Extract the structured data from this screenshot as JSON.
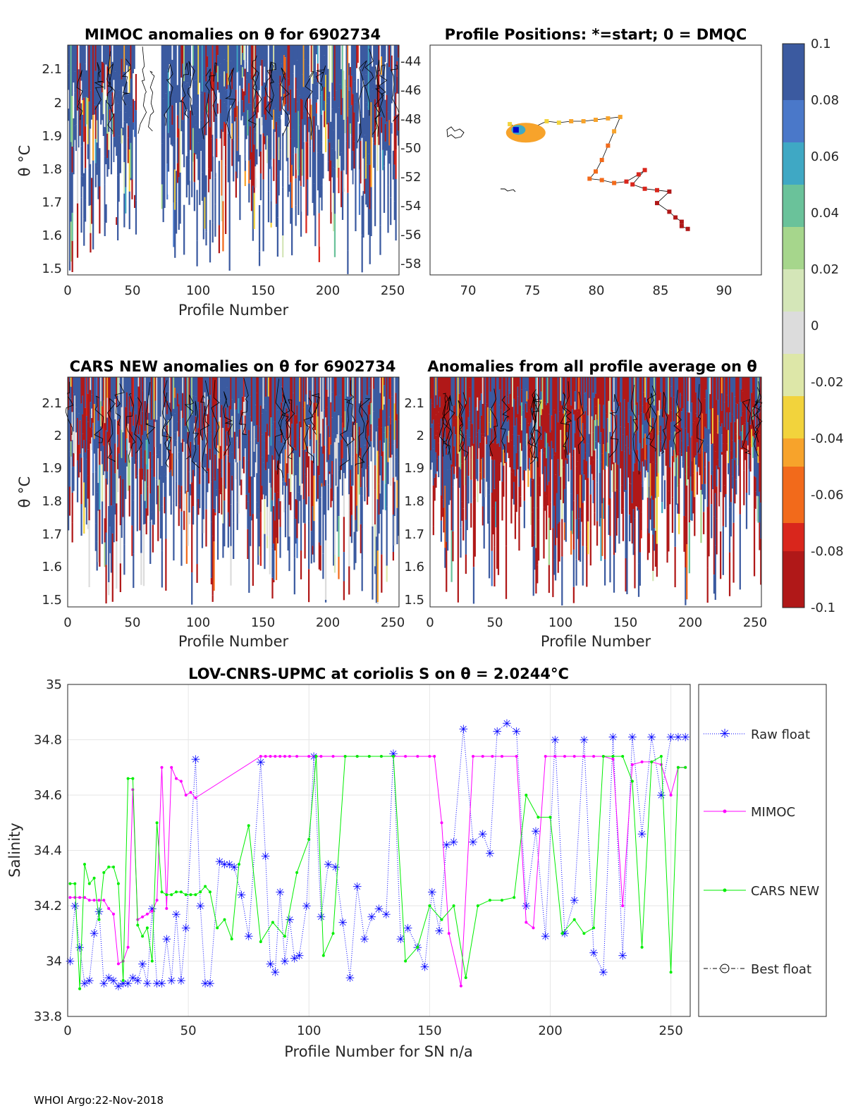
{
  "colors": {
    "colormap": [
      "#3b5aa0",
      "#4a78c9",
      "#3fa8c4",
      "#6ac29a",
      "#a6d68c",
      "#d4e6b8",
      "#dcdcdc",
      "#dde7a8",
      "#f2d33c",
      "#f7a32b",
      "#f26a1b",
      "#d9261c",
      "#b01818"
    ],
    "raw": "#0000ff",
    "mimoc": "#ff00ff",
    "cars": "#00ee00",
    "best": "#000000"
  },
  "panel1": {
    "title": "MIMOC anomalies on θ  for 6902734",
    "ylabel": "θ °C",
    "xlabel": "Profile Number",
    "xticks": [
      "0",
      "50",
      "100",
      "150",
      "200",
      "250"
    ],
    "yticks": [
      "2.1",
      "2",
      "1.9",
      "1.8",
      "1.7",
      "1.6",
      "1.5"
    ]
  },
  "panel2": {
    "title": "Profile Positions: *=start; 0 = DMQC",
    "xticks": [
      "70",
      "75",
      "80",
      "85",
      "90"
    ],
    "yticks": [
      "-44",
      "-46",
      "-48",
      "-50",
      "-52",
      "-54",
      "-56",
      "-58"
    ]
  },
  "panel3": {
    "title": "CARS NEW anomalies on θ for 6902734",
    "ylabel": "θ °C",
    "xlabel": "Profile Number",
    "xticks": [
      "0",
      "50",
      "100",
      "150",
      "200",
      "250"
    ],
    "yticks": [
      "2.1",
      "2",
      "1.9",
      "1.8",
      "1.7",
      "1.6",
      "1.5"
    ]
  },
  "panel4": {
    "title": "Anomalies from all profile average on θ",
    "xlabel": "Profile Number",
    "xticks": [
      "0",
      "50",
      "100",
      "150",
      "200",
      "250"
    ],
    "yticks": [
      "2.1",
      "2",
      "1.9",
      "1.8",
      "1.7",
      "1.6",
      "1.5"
    ]
  },
  "colorbar": {
    "ticks": [
      "0.1",
      "0.08",
      "0.06",
      "0.04",
      "0.02",
      "0",
      "-0.02",
      "-0.04",
      "-0.06",
      "-0.08",
      "-0.1"
    ]
  },
  "legend": {
    "raw": "Raw float",
    "mimoc": "MIMOC",
    "cars": "CARS NEW",
    "best": "Best float"
  },
  "chart_data": [
    {
      "type": "heatmap",
      "title": "MIMOC anomalies on θ  for 6902734",
      "xlabel": "Profile Number",
      "ylabel": "θ °C",
      "xlim": [
        0,
        255
      ],
      "ylim": [
        1.48,
        2.17
      ],
      "clim": [
        -0.1,
        0.1
      ]
    },
    {
      "type": "scatter",
      "title": "Profile Positions: *=start; 0 = DMQC",
      "xlim": [
        66,
        93
      ],
      "ylim": [
        -59,
        -43
      ],
      "track_x": [
        72.5,
        73.0,
        73.5,
        74.0,
        74.5,
        75.5,
        76.5,
        77.5,
        78.5,
        79.5,
        80.5,
        81.5,
        81.0,
        80.5,
        80.0,
        79.5,
        79.0,
        80.0,
        81.0,
        82.0,
        83.0,
        83.5,
        82.5,
        83.5,
        84.5,
        85.5,
        84.5,
        85.5,
        86.0,
        86.5,
        86.5,
        87.0
      ],
      "track_y": [
        -48.5,
        -48.7,
        -48.9,
        -49.0,
        -48.7,
        -48.3,
        -48.4,
        -48.3,
        -48.3,
        -48.2,
        -48.1,
        -48.0,
        -49.0,
        -50.0,
        -51.0,
        -51.8,
        -52.3,
        -52.4,
        -52.6,
        -52.5,
        -52.0,
        -51.7,
        -52.7,
        -53.0,
        -53.1,
        -53.2,
        -54.0,
        -54.6,
        -55.0,
        -55.3,
        -55.6,
        -55.8
      ],
      "colorbar_ticks": [
        0.1,
        0.08,
        0.06,
        0.04,
        0.02,
        0,
        -0.02,
        -0.04,
        -0.06,
        -0.08,
        -0.1
      ]
    },
    {
      "type": "heatmap",
      "title": "CARS NEW anomalies on θ for 6902734",
      "xlabel": "Profile Number",
      "ylabel": "θ °C",
      "xlim": [
        0,
        255
      ],
      "ylim": [
        1.48,
        2.17
      ],
      "clim": [
        -0.1,
        0.1
      ]
    },
    {
      "type": "heatmap",
      "title": "Anomalies from all profile average on θ",
      "xlabel": "Profile Number",
      "xlim": [
        0,
        255
      ],
      "ylim": [
        1.48,
        2.17
      ],
      "clim": [
        -0.1,
        0.1
      ]
    },
    {
      "type": "line",
      "title": "LOV-CNRS-UPMC at coriolis S on θ = 2.0244°C",
      "xlabel": "Profile Number for SN n/a",
      "ylabel": "Salinity",
      "xlim": [
        0,
        258
      ],
      "ylim": [
        33.8,
        35.0
      ],
      "xticks": [
        0,
        50,
        100,
        150,
        200,
        250
      ],
      "yticks": [
        33.8,
        34,
        34.2,
        34.4,
        34.6,
        34.8,
        35
      ],
      "series": [
        {
          "name": "Raw float",
          "x": [
            1,
            3,
            5,
            7,
            9,
            11,
            13,
            15,
            17,
            19,
            21,
            23,
            25,
            27,
            29,
            31,
            33,
            35,
            37,
            39,
            41,
            43,
            45,
            47,
            49,
            53,
            55,
            57,
            59,
            63,
            65,
            67,
            69,
            72,
            75,
            80,
            82,
            84,
            86,
            88,
            90,
            92,
            94,
            96,
            99,
            102,
            105,
            108,
            111,
            114,
            117,
            120,
            123,
            126,
            129,
            132,
            135,
            138,
            141,
            145,
            148,
            151,
            154,
            157,
            160,
            164,
            168,
            172,
            175,
            178,
            182,
            186,
            190,
            194,
            198,
            202,
            206,
            210,
            214,
            218,
            222,
            226,
            230,
            234,
            238,
            242,
            246,
            250,
            253,
            256
          ],
          "y": [
            34.0,
            34.2,
            34.05,
            33.92,
            33.93,
            34.1,
            34.18,
            33.92,
            33.94,
            33.93,
            33.91,
            33.92,
            33.92,
            33.94,
            33.93,
            33.99,
            33.92,
            34.19,
            33.92,
            33.92,
            34.08,
            33.93,
            34.17,
            33.93,
            34.12,
            34.73,
            34.2,
            33.92,
            33.92,
            34.36,
            34.35,
            34.35,
            34.34,
            34.24,
            34.09,
            34.72,
            34.38,
            33.99,
            33.96,
            34.25,
            34.0,
            34.15,
            34.01,
            34.02,
            34.2,
            34.74,
            34.16,
            34.35,
            34.34,
            34.14,
            33.94,
            34.27,
            34.08,
            34.16,
            34.19,
            34.17,
            34.75,
            34.08,
            34.12,
            34.05,
            33.98,
            34.25,
            34.11,
            34.42,
            34.43,
            34.84,
            34.43,
            34.46,
            34.39,
            34.83,
            34.86,
            34.83,
            34.2,
            34.47,
            34.09,
            34.8,
            34.1,
            34.22,
            34.8,
            34.03,
            33.96,
            34.81,
            34.02,
            34.81,
            34.46,
            34.81,
            34.6,
            34.81,
            34.81,
            34.81
          ]
        },
        {
          "name": "MIMOC",
          "x": [
            1,
            3,
            5,
            7,
            9,
            11,
            13,
            15,
            17,
            19,
            21,
            23,
            25,
            27,
            29,
            31,
            33,
            35,
            37,
            39,
            41,
            43,
            45,
            47,
            49,
            51,
            53,
            80,
            82,
            84,
            86,
            88,
            90,
            92,
            95,
            100,
            105,
            110,
            115,
            120,
            125,
            130,
            135,
            140,
            145,
            150,
            152,
            155,
            158,
            163,
            168,
            172,
            176,
            180,
            186,
            190,
            193,
            198,
            202,
            206,
            210,
            214,
            218,
            222,
            226,
            230,
            234,
            238,
            242,
            246,
            250,
            253,
            256
          ],
          "y": [
            34.23,
            34.23,
            34.23,
            34.23,
            34.22,
            34.22,
            34.22,
            34.22,
            34.19,
            34.17,
            33.99,
            34.0,
            34.05,
            34.62,
            34.15,
            34.16,
            34.17,
            34.18,
            34.22,
            34.7,
            34.19,
            34.7,
            34.66,
            34.65,
            34.6,
            34.61,
            34.59,
            34.74,
            34.74,
            34.74,
            34.74,
            34.74,
            34.74,
            34.74,
            34.74,
            34.74,
            34.74,
            34.74,
            34.74,
            34.74,
            34.74,
            34.74,
            34.74,
            34.74,
            34.74,
            34.74,
            34.74,
            34.5,
            34.1,
            33.91,
            34.74,
            34.74,
            34.74,
            34.74,
            34.74,
            34.14,
            34.12,
            34.74,
            34.74,
            34.74,
            34.74,
            34.74,
            34.74,
            34.74,
            34.73,
            34.2,
            34.71,
            34.72,
            34.72,
            34.71,
            34.6,
            34.7,
            34.7
          ]
        },
        {
          "name": "CARS NEW",
          "x": [
            1,
            3,
            5,
            7,
            9,
            11,
            13,
            15,
            17,
            19,
            21,
            23,
            25,
            27,
            29,
            31,
            33,
            35,
            37,
            39,
            41,
            43,
            45,
            47,
            49,
            51,
            53,
            55,
            57,
            59,
            62,
            65,
            68,
            71,
            75,
            80,
            85,
            90,
            95,
            100,
            103,
            106,
            110,
            115,
            120,
            125,
            130,
            135,
            140,
            145,
            150,
            155,
            160,
            165,
            170,
            175,
            180,
            185,
            190,
            195,
            200,
            205,
            210,
            214,
            218,
            222,
            226,
            230,
            234,
            238,
            242,
            246,
            250,
            253,
            256
          ],
          "y": [
            34.28,
            34.28,
            33.9,
            34.35,
            34.28,
            34.3,
            34.15,
            34.32,
            34.34,
            34.34,
            34.28,
            33.93,
            34.66,
            34.66,
            34.13,
            34.09,
            34.12,
            34.0,
            34.5,
            34.25,
            34.24,
            34.24,
            34.25,
            34.25,
            34.24,
            34.24,
            34.24,
            34.25,
            34.27,
            34.25,
            34.12,
            34.15,
            34.08,
            34.35,
            34.49,
            34.07,
            34.14,
            34.09,
            34.32,
            34.44,
            34.74,
            34.02,
            34.1,
            34.74,
            34.74,
            34.74,
            34.74,
            34.74,
            34.0,
            34.05,
            34.2,
            34.15,
            34.2,
            33.94,
            34.2,
            34.22,
            34.22,
            34.23,
            34.6,
            34.52,
            34.52,
            34.1,
            34.15,
            34.1,
            34.12,
            34.74,
            34.74,
            34.74,
            34.65,
            34.05,
            34.72,
            34.74,
            33.96,
            34.7,
            34.7
          ]
        }
      ],
      "legend": [
        "Raw float",
        "MIMOC",
        "CARS NEW",
        "Best float"
      ]
    }
  ],
  "footer": "WHOI Argo:22-Nov-2018"
}
